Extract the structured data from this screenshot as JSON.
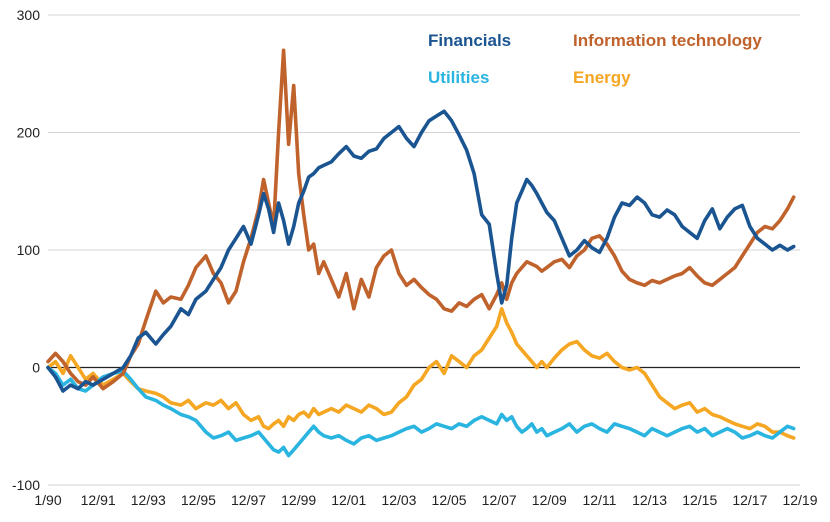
{
  "chart_data": {
    "type": "line",
    "title": "",
    "xlabel": "",
    "ylabel": "",
    "ylim": [
      -100,
      300
    ],
    "xlim": [
      1990.0,
      2020.0
    ],
    "yticks": [
      300,
      200,
      100,
      0,
      -100
    ],
    "ytick_labels": [
      "300",
      "200",
      "100",
      "0",
      "-100"
    ],
    "xticks": [
      1990.0,
      1992.0,
      1994.0,
      1996.0,
      1998.0,
      2000.0,
      2002.0,
      2004.0,
      2006.0,
      2008.0,
      2010.0,
      2012.0,
      2014.0,
      2016.0,
      2018.0,
      2020.0
    ],
    "xtick_labels": [
      "1/90",
      "12/91",
      "12/93",
      "12/95",
      "12/97",
      "12/99",
      "12/01",
      "12/03",
      "12/05",
      "12/07",
      "12/09",
      "12/11",
      "12/13",
      "12/15",
      "12/17",
      "12/19"
    ],
    "grid": true,
    "zero_line": true,
    "series": [
      {
        "name": "Financials",
        "color": "#1a5592",
        "x": [
          1990.0,
          1990.3,
          1990.6,
          1990.9,
          1991.2,
          1991.5,
          1991.8,
          1992.2,
          1992.6,
          1993.0,
          1993.3,
          1993.6,
          1993.9,
          1994.3,
          1994.6,
          1994.9,
          1995.3,
          1995.6,
          1995.9,
          1996.3,
          1996.6,
          1996.9,
          1997.2,
          1997.5,
          1997.8,
          1998.1,
          1998.4,
          1998.6,
          1998.8,
          1999.0,
          1999.2,
          1999.4,
          1999.6,
          1999.8,
          2000.0,
          2000.2,
          2000.4,
          2000.6,
          2000.8,
          2001.0,
          2001.3,
          2001.6,
          2001.9,
          2002.2,
          2002.5,
          2002.8,
          2003.1,
          2003.4,
          2003.7,
          2004.0,
          2004.3,
          2004.6,
          2004.9,
          2005.2,
          2005.5,
          2005.8,
          2006.1,
          2006.4,
          2006.7,
          2007.0,
          2007.3,
          2007.6,
          2007.9,
          2008.1,
          2008.3,
          2008.5,
          2008.7,
          2008.9,
          2009.1,
          2009.3,
          2009.5,
          2009.7,
          2009.9,
          2010.2,
          2010.5,
          2010.8,
          2011.1,
          2011.4,
          2011.7,
          2012.0,
          2012.3,
          2012.6,
          2012.9,
          2013.2,
          2013.5,
          2013.8,
          2014.1,
          2014.4,
          2014.7,
          2015.0,
          2015.3,
          2015.6,
          2015.9,
          2016.2,
          2016.5,
          2016.8,
          2017.1,
          2017.4,
          2017.7,
          2018.0,
          2018.3,
          2018.6,
          2018.9,
          2019.2,
          2019.5,
          2019.75
        ],
        "values": [
          0,
          -8,
          -20,
          -15,
          -18,
          -12,
          -15,
          -10,
          -5,
          0,
          10,
          25,
          30,
          20,
          28,
          35,
          50,
          45,
          58,
          65,
          75,
          85,
          100,
          110,
          120,
          105,
          130,
          148,
          135,
          115,
          140,
          125,
          105,
          120,
          140,
          150,
          162,
          165,
          170,
          172,
          175,
          182,
          188,
          180,
          178,
          184,
          186,
          195,
          200,
          205,
          195,
          188,
          200,
          210,
          214,
          218,
          210,
          198,
          185,
          165,
          130,
          122,
          80,
          55,
          70,
          110,
          140,
          150,
          160,
          155,
          148,
          140,
          132,
          125,
          110,
          95,
          100,
          108,
          102,
          98,
          110,
          128,
          140,
          138,
          145,
          140,
          130,
          128,
          134,
          130,
          120,
          115,
          110,
          125,
          135,
          118,
          128,
          135,
          138,
          120,
          110,
          105,
          100,
          104,
          100,
          103
        ]
      },
      {
        "name": "Information technology",
        "color": "#c0622b",
        "x": [
          1990.0,
          1990.3,
          1990.6,
          1990.9,
          1991.2,
          1991.5,
          1991.8,
          1992.2,
          1992.6,
          1993.0,
          1993.3,
          1993.6,
          1993.9,
          1994.3,
          1994.6,
          1994.9,
          1995.3,
          1995.6,
          1995.9,
          1996.3,
          1996.6,
          1996.9,
          1997.2,
          1997.5,
          1997.8,
          1998.1,
          1998.4,
          1998.6,
          1998.8,
          1999.0,
          1999.2,
          1999.4,
          1999.6,
          1999.8,
          2000.0,
          2000.2,
          2000.4,
          2000.6,
          2000.8,
          2001.0,
          2001.3,
          2001.6,
          2001.9,
          2002.2,
          2002.5,
          2002.8,
          2003.1,
          2003.4,
          2003.7,
          2004.0,
          2004.3,
          2004.6,
          2004.9,
          2005.2,
          2005.5,
          2005.8,
          2006.1,
          2006.4,
          2006.7,
          2007.0,
          2007.3,
          2007.6,
          2007.9,
          2008.1,
          2008.3,
          2008.5,
          2008.7,
          2008.9,
          2009.1,
          2009.3,
          2009.5,
          2009.7,
          2009.9,
          2010.2,
          2010.5,
          2010.8,
          2011.1,
          2011.4,
          2011.7,
          2012.0,
          2012.3,
          2012.6,
          2012.9,
          2013.2,
          2013.5,
          2013.8,
          2014.1,
          2014.4,
          2014.7,
          2015.0,
          2015.3,
          2015.6,
          2015.9,
          2016.2,
          2016.5,
          2016.8,
          2017.1,
          2017.4,
          2017.7,
          2018.0,
          2018.3,
          2018.6,
          2018.9,
          2019.2,
          2019.5,
          2019.75
        ],
        "values": [
          5,
          12,
          5,
          -5,
          -12,
          -15,
          -8,
          -18,
          -12,
          -5,
          10,
          20,
          40,
          65,
          55,
          60,
          58,
          70,
          85,
          95,
          80,
          72,
          55,
          65,
          90,
          110,
          135,
          160,
          140,
          120,
          200,
          270,
          190,
          240,
          165,
          130,
          100,
          105,
          80,
          90,
          75,
          60,
          80,
          50,
          75,
          60,
          85,
          95,
          100,
          80,
          70,
          75,
          68,
          62,
          58,
          50,
          48,
          55,
          52,
          58,
          62,
          50,
          62,
          72,
          58,
          72,
          80,
          85,
          90,
          88,
          86,
          82,
          85,
          90,
          92,
          85,
          95,
          100,
          110,
          112,
          105,
          95,
          82,
          75,
          72,
          70,
          74,
          72,
          75,
          78,
          80,
          85,
          78,
          72,
          70,
          75,
          80,
          85,
          95,
          105,
          115,
          120,
          118,
          125,
          135,
          145
        ]
      },
      {
        "name": "Utilities",
        "color": "#2ab4e0",
        "x": [
          1990.0,
          1990.3,
          1990.6,
          1990.9,
          1991.2,
          1991.5,
          1991.8,
          1992.2,
          1992.6,
          1993.0,
          1993.3,
          1993.6,
          1993.9,
          1994.3,
          1994.6,
          1994.9,
          1995.3,
          1995.6,
          1995.9,
          1996.3,
          1996.6,
          1996.9,
          1997.2,
          1997.5,
          1997.8,
          1998.1,
          1998.4,
          1998.6,
          1998.8,
          1999.0,
          1999.2,
          1999.4,
          1999.6,
          1999.8,
          2000.0,
          2000.2,
          2000.4,
          2000.6,
          2000.8,
          2001.0,
          2001.3,
          2001.6,
          2001.9,
          2002.2,
          2002.5,
          2002.8,
          2003.1,
          2003.4,
          2003.7,
          2004.0,
          2004.3,
          2004.6,
          2004.9,
          2005.2,
          2005.5,
          2005.8,
          2006.1,
          2006.4,
          2006.7,
          2007.0,
          2007.3,
          2007.6,
          2007.9,
          2008.1,
          2008.3,
          2008.5,
          2008.7,
          2008.9,
          2009.1,
          2009.3,
          2009.5,
          2009.7,
          2009.9,
          2010.2,
          2010.5,
          2010.8,
          2011.1,
          2011.4,
          2011.7,
          2012.0,
          2012.3,
          2012.6,
          2012.9,
          2013.2,
          2013.5,
          2013.8,
          2014.1,
          2014.4,
          2014.7,
          2015.0,
          2015.3,
          2015.6,
          2015.9,
          2016.2,
          2016.5,
          2016.8,
          2017.1,
          2017.4,
          2017.7,
          2018.0,
          2018.3,
          2018.6,
          2018.9,
          2019.2,
          2019.5,
          2019.75
        ],
        "values": [
          0,
          -5,
          -15,
          -10,
          -18,
          -20,
          -15,
          -8,
          -5,
          -3,
          -10,
          -18,
          -25,
          -28,
          -32,
          -35,
          -40,
          -42,
          -45,
          -55,
          -60,
          -58,
          -55,
          -62,
          -60,
          -58,
          -55,
          -60,
          -65,
          -70,
          -72,
          -68,
          -75,
          -70,
          -65,
          -60,
          -55,
          -50,
          -55,
          -58,
          -60,
          -58,
          -62,
          -65,
          -60,
          -58,
          -62,
          -60,
          -58,
          -55,
          -52,
          -50,
          -55,
          -52,
          -48,
          -50,
          -52,
          -48,
          -50,
          -45,
          -42,
          -45,
          -48,
          -40,
          -45,
          -42,
          -50,
          -55,
          -52,
          -48,
          -55,
          -52,
          -58,
          -55,
          -52,
          -48,
          -55,
          -50,
          -48,
          -52,
          -55,
          -48,
          -50,
          -52,
          -55,
          -58,
          -52,
          -55,
          -58,
          -55,
          -52,
          -50,
          -55,
          -52,
          -58,
          -55,
          -52,
          -55,
          -60,
          -58,
          -55,
          -58,
          -60,
          -55,
          -50,
          -52
        ]
      },
      {
        "name": "Energy",
        "color": "#f5a623",
        "x": [
          1990.0,
          1990.3,
          1990.6,
          1990.9,
          1991.2,
          1991.5,
          1991.8,
          1992.2,
          1992.6,
          1993.0,
          1993.3,
          1993.6,
          1993.9,
          1994.3,
          1994.6,
          1994.9,
          1995.3,
          1995.6,
          1995.9,
          1996.3,
          1996.6,
          1996.9,
          1997.2,
          1997.5,
          1997.8,
          1998.1,
          1998.4,
          1998.6,
          1998.8,
          1999.0,
          1999.2,
          1999.4,
          1999.6,
          1999.8,
          2000.0,
          2000.2,
          2000.4,
          2000.6,
          2000.8,
          2001.0,
          2001.3,
          2001.6,
          2001.9,
          2002.2,
          2002.5,
          2002.8,
          2003.1,
          2003.4,
          2003.7,
          2004.0,
          2004.3,
          2004.6,
          2004.9,
          2005.2,
          2005.5,
          2005.8,
          2006.1,
          2006.4,
          2006.7,
          2007.0,
          2007.3,
          2007.6,
          2007.9,
          2008.1,
          2008.3,
          2008.5,
          2008.7,
          2008.9,
          2009.1,
          2009.3,
          2009.5,
          2009.7,
          2009.9,
          2010.2,
          2010.5,
          2010.8,
          2011.1,
          2011.4,
          2011.7,
          2012.0,
          2012.3,
          2012.6,
          2012.9,
          2013.2,
          2013.5,
          2013.8,
          2014.1,
          2014.4,
          2014.7,
          2015.0,
          2015.3,
          2015.6,
          2015.9,
          2016.2,
          2016.5,
          2016.8,
          2017.1,
          2017.4,
          2017.7,
          2018.0,
          2018.3,
          2018.6,
          2018.9,
          2019.2,
          2019.5,
          2019.75
        ],
        "values": [
          0,
          5,
          -5,
          10,
          0,
          -10,
          -5,
          -15,
          -10,
          -5,
          -12,
          -18,
          -20,
          -22,
          -25,
          -30,
          -32,
          -28,
          -35,
          -30,
          -32,
          -28,
          -35,
          -30,
          -40,
          -45,
          -42,
          -50,
          -52,
          -48,
          -45,
          -50,
          -42,
          -45,
          -40,
          -38,
          -42,
          -35,
          -40,
          -38,
          -35,
          -38,
          -32,
          -35,
          -38,
          -32,
          -35,
          -40,
          -38,
          -30,
          -25,
          -15,
          -10,
          0,
          5,
          -5,
          10,
          5,
          0,
          10,
          15,
          25,
          35,
          50,
          38,
          30,
          20,
          15,
          10,
          5,
          0,
          5,
          0,
          8,
          15,
          20,
          22,
          15,
          10,
          8,
          12,
          5,
          0,
          -2,
          0,
          -5,
          -15,
          -25,
          -30,
          -35,
          -32,
          -30,
          -38,
          -35,
          -40,
          -42,
          -45,
          -48,
          -50,
          -52,
          -48,
          -50,
          -55,
          -55,
          -58,
          -60
        ]
      }
    ],
    "legend": {
      "placement": "top-right",
      "entries": [
        {
          "label": "Financials",
          "color": "#1a5592"
        },
        {
          "label": "Information technology",
          "color": "#c0622b"
        },
        {
          "label": "Utilities",
          "color": "#2ab4e0"
        },
        {
          "label": "Energy",
          "color": "#f5a623"
        }
      ]
    }
  }
}
